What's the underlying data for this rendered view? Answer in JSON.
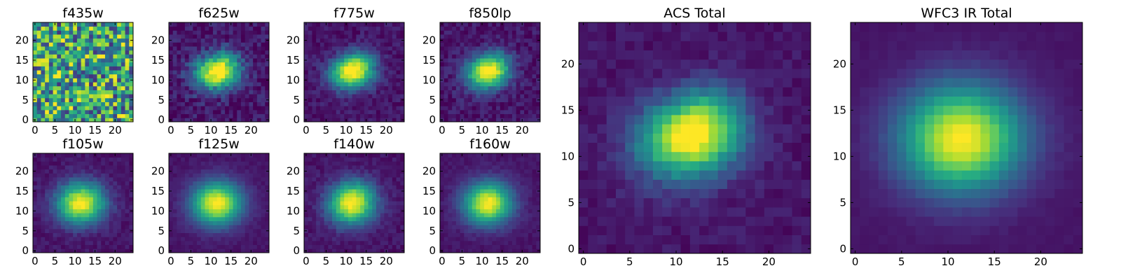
{
  "chart_data": [
    {
      "type": "heatmap",
      "title": "f435w",
      "xlim": [
        0,
        24
      ],
      "ylim": [
        0,
        24
      ],
      "grid": false,
      "x_ticks": [
        0,
        5,
        10,
        15,
        20
      ],
      "y_ticks": [
        0,
        5,
        10,
        15,
        20
      ],
      "x_tick_labels": [
        "0",
        "5",
        "10",
        "15",
        "20"
      ],
      "y_tick_labels": [
        "0",
        "5",
        "10",
        "15",
        "20"
      ],
      "colormap": "viridis",
      "model": {
        "sx": 30,
        "sy": 30,
        "noise": 0.9,
        "tilt": 0,
        "blob": 0
      }
    },
    {
      "type": "heatmap",
      "title": "f625w",
      "xlim": [
        0,
        24
      ],
      "ylim": [
        0,
        24
      ],
      "grid": false,
      "x_ticks": [
        0,
        5,
        10,
        15,
        20
      ],
      "y_ticks": [
        0,
        5,
        10,
        15,
        20
      ],
      "x_tick_labels": [
        "0",
        "5",
        "10",
        "15",
        "20"
      ],
      "y_tick_labels": [
        "0",
        "5",
        "10",
        "15",
        "20"
      ],
      "colormap": "viridis",
      "model": {
        "sx": 3.8,
        "sy": 2.8,
        "noise": 0.22,
        "tilt": 0.35,
        "blob": 0.35
      }
    },
    {
      "type": "heatmap",
      "title": "f775w",
      "xlim": [
        0,
        24
      ],
      "ylim": [
        0,
        24
      ],
      "grid": false,
      "x_ticks": [
        0,
        5,
        10,
        15,
        20
      ],
      "y_ticks": [
        0,
        5,
        10,
        15,
        20
      ],
      "x_tick_labels": [
        "0",
        "5",
        "10",
        "15",
        "20"
      ],
      "y_tick_labels": [
        "0",
        "5",
        "10",
        "15",
        "20"
      ],
      "colormap": "viridis",
      "model": {
        "sx": 3.6,
        "sy": 2.7,
        "noise": 0.14,
        "tilt": 0.35,
        "blob": 0.4
      }
    },
    {
      "type": "heatmap",
      "title": "f850lp",
      "xlim": [
        0,
        24
      ],
      "ylim": [
        0,
        24
      ],
      "grid": false,
      "x_ticks": [
        0,
        5,
        10,
        15,
        20
      ],
      "y_ticks": [
        0,
        5,
        10,
        15,
        20
      ],
      "x_tick_labels": [
        "0",
        "5",
        "10",
        "15",
        "20"
      ],
      "y_tick_labels": [
        "0",
        "5",
        "10",
        "15",
        "20"
      ],
      "colormap": "viridis",
      "model": {
        "sx": 3.6,
        "sy": 2.7,
        "noise": 0.16,
        "tilt": 0.35,
        "blob": 0.35
      }
    },
    {
      "type": "heatmap",
      "title": "ACS Total",
      "xlim": [
        0,
        24
      ],
      "ylim": [
        0,
        24
      ],
      "grid": false,
      "x_ticks": [
        0,
        5,
        10,
        15,
        20
      ],
      "y_ticks": [
        0,
        5,
        10,
        15,
        20
      ],
      "x_tick_labels": [
        "0",
        "5",
        "10",
        "15",
        "20"
      ],
      "y_tick_labels": [
        "0",
        "5",
        "10",
        "15",
        "20"
      ],
      "colormap": "viridis",
      "model": {
        "sx": 3.7,
        "sy": 2.8,
        "noise": 0.1,
        "tilt": 0.35,
        "blob": 0.42
      }
    },
    {
      "type": "heatmap",
      "title": "WFC3 IR Total",
      "xlim": [
        0,
        24
      ],
      "ylim": [
        0,
        24
      ],
      "grid": false,
      "x_ticks": [
        0,
        5,
        10,
        15,
        20
      ],
      "y_ticks": [
        0,
        5,
        10,
        15,
        20
      ],
      "x_tick_labels": [
        "0",
        "5",
        "10",
        "15",
        "20"
      ],
      "y_tick_labels": [
        "0",
        "5",
        "10",
        "15",
        "20"
      ],
      "colormap": "viridis",
      "model": {
        "sx": 4.6,
        "sy": 4.0,
        "noise": 0.03,
        "tilt": 0.1,
        "blob": 0
      }
    },
    {
      "type": "heatmap",
      "title": "f105w",
      "xlim": [
        0,
        24
      ],
      "ylim": [
        0,
        24
      ],
      "grid": false,
      "x_ticks": [
        0,
        5,
        10,
        15,
        20
      ],
      "y_ticks": [
        0,
        5,
        10,
        15,
        20
      ],
      "x_tick_labels": [
        "0",
        "5",
        "10",
        "15",
        "20"
      ],
      "y_tick_labels": [
        "0",
        "5",
        "10",
        "15",
        "20"
      ],
      "colormap": "viridis",
      "model": {
        "sx": 4.2,
        "sy": 3.6,
        "noise": 0.1,
        "tilt": 0.1,
        "blob": 0
      }
    },
    {
      "type": "heatmap",
      "title": "f125w",
      "xlim": [
        0,
        24
      ],
      "ylim": [
        0,
        24
      ],
      "grid": false,
      "x_ticks": [
        0,
        5,
        10,
        15,
        20
      ],
      "y_ticks": [
        0,
        5,
        10,
        15,
        20
      ],
      "x_tick_labels": [
        "0",
        "5",
        "10",
        "15",
        "20"
      ],
      "y_tick_labels": [
        "0",
        "5",
        "10",
        "15",
        "20"
      ],
      "colormap": "viridis",
      "model": {
        "sx": 4.4,
        "sy": 3.8,
        "noise": 0.06,
        "tilt": 0.1,
        "blob": 0
      }
    },
    {
      "type": "heatmap",
      "title": "f140w",
      "xlim": [
        0,
        24
      ],
      "ylim": [
        0,
        24
      ],
      "grid": false,
      "x_ticks": [
        0,
        5,
        10,
        15,
        20
      ],
      "y_ticks": [
        0,
        5,
        10,
        15,
        20
      ],
      "x_tick_labels": [
        "0",
        "5",
        "10",
        "15",
        "20"
      ],
      "y_tick_labels": [
        "0",
        "5",
        "10",
        "15",
        "20"
      ],
      "colormap": "viridis",
      "model": {
        "sx": 4.0,
        "sy": 3.6,
        "noise": 0.1,
        "tilt": 0.2,
        "blob": 0.1
      }
    },
    {
      "type": "heatmap",
      "title": "f160w",
      "xlim": [
        0,
        24
      ],
      "ylim": [
        0,
        24
      ],
      "grid": false,
      "x_ticks": [
        0,
        5,
        10,
        15,
        20
      ],
      "y_ticks": [
        0,
        5,
        10,
        15,
        20
      ],
      "x_tick_labels": [
        "0",
        "5",
        "10",
        "15",
        "20"
      ],
      "y_tick_labels": [
        "0",
        "5",
        "10",
        "15",
        "20"
      ],
      "colormap": "viridis",
      "model": {
        "sx": 4.2,
        "sy": 3.7,
        "noise": 0.07,
        "tilt": 0.1,
        "blob": 0
      }
    }
  ]
}
